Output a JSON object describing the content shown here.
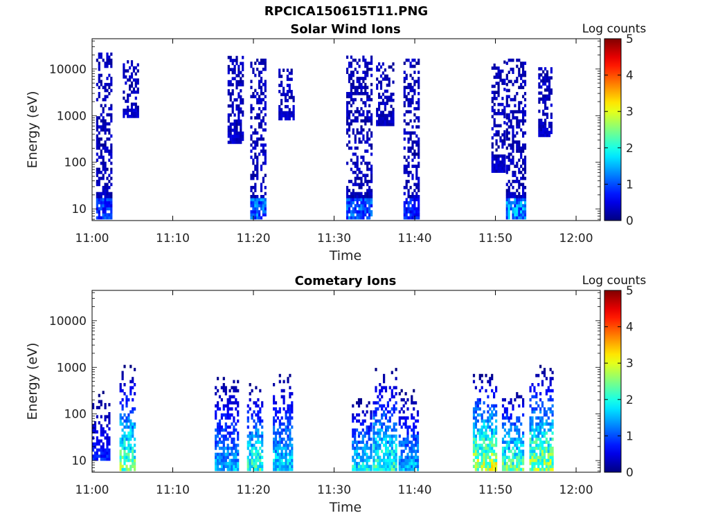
{
  "figure": {
    "title": "RPCICA150615T11.PNG"
  },
  "chart_data": [
    {
      "type": "heatmap",
      "title": "Solar Wind Ions",
      "xlabel": "Time",
      "ylabel": "Energy (eV)",
      "colorbar_label": "Log counts",
      "xticks": [
        "11:00",
        "11:10",
        "11:20",
        "11:30",
        "11:40",
        "11:50",
        "12:00"
      ],
      "yticks": [
        "10",
        "100",
        "1000",
        "10000"
      ],
      "colorbar_ticks": [
        "0",
        "1",
        "2",
        "3",
        "4",
        "5"
      ],
      "xlim_minutes": [
        0,
        63
      ],
      "ylim_log10": [
        0.75,
        4.65
      ],
      "clim": [
        0,
        5
      ],
      "y_scale": "log",
      "colormap": "jet",
      "events": [
        {
          "t_start_min": 0.5,
          "t_end_min": 2.3,
          "e_low_eV": 6,
          "e_high_eV": 20000,
          "peak_log_counts": 1.2
        },
        {
          "t_start_min": 3.8,
          "t_end_min": 5.6,
          "e_low_eV": 900,
          "e_high_eV": 15000,
          "peak_log_counts": 0.5
        },
        {
          "t_start_min": 16.8,
          "t_end_min": 18.8,
          "e_low_eV": 250,
          "e_high_eV": 18000,
          "peak_log_counts": 0.5
        },
        {
          "t_start_min": 19.6,
          "t_end_min": 21.6,
          "e_low_eV": 6,
          "e_high_eV": 15000,
          "peak_log_counts": 1.6
        },
        {
          "t_start_min": 23.1,
          "t_end_min": 24.9,
          "e_low_eV": 800,
          "e_high_eV": 10000,
          "peak_log_counts": 0.5
        },
        {
          "t_start_min": 31.5,
          "t_end_min": 34.6,
          "e_low_eV": 6,
          "e_high_eV": 18000,
          "peak_log_counts": 1.4
        },
        {
          "t_start_min": 35.2,
          "t_end_min": 37.4,
          "e_low_eV": 600,
          "e_high_eV": 12000,
          "peak_log_counts": 0.5
        },
        {
          "t_start_min": 38.6,
          "t_end_min": 40.6,
          "e_low_eV": 6,
          "e_high_eV": 15000,
          "peak_log_counts": 1.0
        },
        {
          "t_start_min": 49.5,
          "t_end_min": 51.2,
          "e_low_eV": 60,
          "e_high_eV": 15000,
          "peak_log_counts": 0.5
        },
        {
          "t_start_min": 51.3,
          "t_end_min": 53.6,
          "e_low_eV": 6,
          "e_high_eV": 15000,
          "peak_log_counts": 1.8
        },
        {
          "t_start_min": 55.3,
          "t_end_min": 56.9,
          "e_low_eV": 350,
          "e_high_eV": 10000,
          "peak_log_counts": 0.5
        }
      ]
    },
    {
      "type": "heatmap",
      "title": "Cometary Ions",
      "xlabel": "Time",
      "ylabel": "Energy (eV)",
      "colorbar_label": "Log counts",
      "xticks": [
        "11:00",
        "11:10",
        "11:20",
        "11:30",
        "11:40",
        "11:50",
        "12:00"
      ],
      "yticks": [
        "10",
        "100",
        "1000",
        "10000"
      ],
      "colorbar_ticks": [
        "0",
        "1",
        "2",
        "3",
        "4",
        "5"
      ],
      "xlim_minutes": [
        0,
        63
      ],
      "ylim_log10": [
        0.75,
        4.65
      ],
      "clim": [
        0,
        5
      ],
      "y_scale": "log",
      "colormap": "jet",
      "events": [
        {
          "t_start_min": 0.0,
          "t_end_min": 2.2,
          "e_low_eV": 10,
          "e_high_eV": 300,
          "peak_log_counts": 1.0
        },
        {
          "t_start_min": 3.4,
          "t_end_min": 5.4,
          "e_low_eV": 6,
          "e_high_eV": 1000,
          "peak_log_counts": 3.1
        },
        {
          "t_start_min": 15.2,
          "t_end_min": 18.2,
          "e_low_eV": 6,
          "e_high_eV": 700,
          "peak_log_counts": 1.9
        },
        {
          "t_start_min": 19.2,
          "t_end_min": 21.2,
          "e_low_eV": 6,
          "e_high_eV": 400,
          "peak_log_counts": 2.8
        },
        {
          "t_start_min": 22.4,
          "t_end_min": 24.9,
          "e_low_eV": 6,
          "e_high_eV": 800,
          "peak_log_counts": 2.2
        },
        {
          "t_start_min": 32.2,
          "t_end_min": 34.6,
          "e_low_eV": 6,
          "e_high_eV": 200,
          "peak_log_counts": 2.4
        },
        {
          "t_start_min": 34.8,
          "t_end_min": 37.8,
          "e_low_eV": 6,
          "e_high_eV": 900,
          "peak_log_counts": 2.7
        },
        {
          "t_start_min": 38.0,
          "t_end_min": 40.5,
          "e_low_eV": 6,
          "e_high_eV": 300,
          "peak_log_counts": 2.0
        },
        {
          "t_start_min": 47.2,
          "t_end_min": 50.2,
          "e_low_eV": 6,
          "e_high_eV": 700,
          "peak_log_counts": 3.6
        },
        {
          "t_start_min": 50.8,
          "t_end_min": 53.4,
          "e_low_eV": 6,
          "e_high_eV": 300,
          "peak_log_counts": 3.0
        },
        {
          "t_start_min": 54.2,
          "t_end_min": 57.0,
          "e_low_eV": 6,
          "e_high_eV": 1000,
          "peak_log_counts": 3.4
        }
      ]
    }
  ]
}
